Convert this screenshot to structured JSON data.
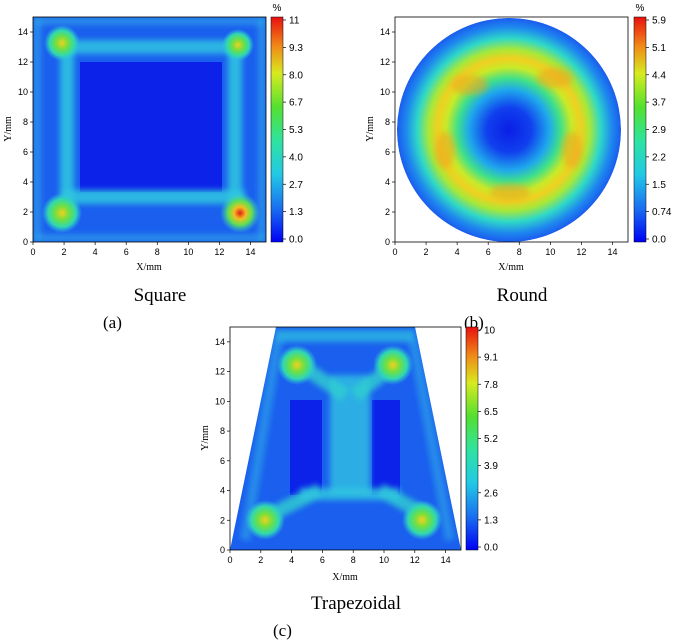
{
  "colors": {
    "low": "#1a1aee",
    "mid_low": "#27b8e8",
    "mid": "#3be07a",
    "mid_high": "#e8ea30",
    "high": "#e81818"
  },
  "chart_data": [
    {
      "type": "heatmap",
      "panel_label": "(a)",
      "caption": "Square",
      "shape": "square",
      "xlabel": "X/mm",
      "ylabel": "Y/mm",
      "xlim": [
        0,
        15
      ],
      "ylim": [
        0,
        15
      ],
      "xticks": [
        "0",
        "2",
        "4",
        "6",
        "8",
        "10",
        "12",
        "14"
      ],
      "yticks": [
        "0",
        "2",
        "4",
        "6",
        "8",
        "10",
        "12",
        "14"
      ],
      "colorbar_unit": "%",
      "colorbar_ticks": [
        "11",
        "9.3",
        "8.0",
        "6.7",
        "5.3",
        "4.0",
        "2.7",
        "1.3",
        "0.0"
      ],
      "colorbar_range": [
        0,
        11
      ],
      "hotspots": [
        {
          "x": 1.8,
          "y": 13.0,
          "value": 7.5
        },
        {
          "x": 13.2,
          "y": 13.0,
          "value": 6.5
        },
        {
          "x": 1.8,
          "y": 1.8,
          "value": 8.0
        },
        {
          "x": 13.3,
          "y": 1.8,
          "value": 11
        }
      ]
    },
    {
      "type": "heatmap",
      "panel_label": "(b)",
      "caption": "Round",
      "shape": "round",
      "xlabel": "X/mm",
      "ylabel": "Y/mm",
      "xlim": [
        0,
        15
      ],
      "ylim": [
        0,
        15
      ],
      "xticks": [
        "0",
        "2",
        "4",
        "6",
        "8",
        "10",
        "12",
        "14"
      ],
      "yticks": [
        "0",
        "2",
        "4",
        "6",
        "8",
        "10",
        "12",
        "14"
      ],
      "colorbar_unit": "%",
      "colorbar_ticks": [
        "5.9",
        "5.1",
        "4.4",
        "3.7",
        "2.9",
        "2.2",
        "1.5",
        "0.74",
        "0.0"
      ],
      "colorbar_range": [
        0,
        5.9
      ],
      "ring": {
        "center_x": 7.5,
        "center_y": 7.5,
        "radius": 4.8,
        "peak_value": 4.8,
        "center_value": 0.3
      }
    },
    {
      "type": "heatmap",
      "panel_label": "(c)",
      "caption": "Trapezoidal",
      "shape": "trapezoid",
      "xlabel": "X/mm",
      "ylabel": "Y/mm",
      "xlim": [
        0,
        15
      ],
      "ylim": [
        0,
        15
      ],
      "xticks": [
        "0",
        "2",
        "4",
        "6",
        "8",
        "10",
        "12",
        "14"
      ],
      "yticks": [
        "0",
        "2",
        "4",
        "6",
        "8",
        "10",
        "12",
        "14"
      ],
      "colorbar_ticks": [
        "10",
        "9.1",
        "7.8",
        "6.5",
        "5.2",
        "3.9",
        "2.6",
        "1.3",
        "0.0"
      ],
      "colorbar_range": [
        0,
        10
      ],
      "trapezoid": {
        "top_x": [
          3.0,
          12.0
        ],
        "bottom_x": [
          0.0,
          15.0
        ]
      },
      "hotspots": [
        {
          "x": 5.2,
          "y": 12.5,
          "value": 6.0
        },
        {
          "x": 10.0,
          "y": 12.5,
          "value": 5.5
        },
        {
          "x": 2.5,
          "y": 2.0,
          "value": 7.0
        },
        {
          "x": 12.3,
          "y": 2.0,
          "value": 7.0
        }
      ]
    }
  ]
}
